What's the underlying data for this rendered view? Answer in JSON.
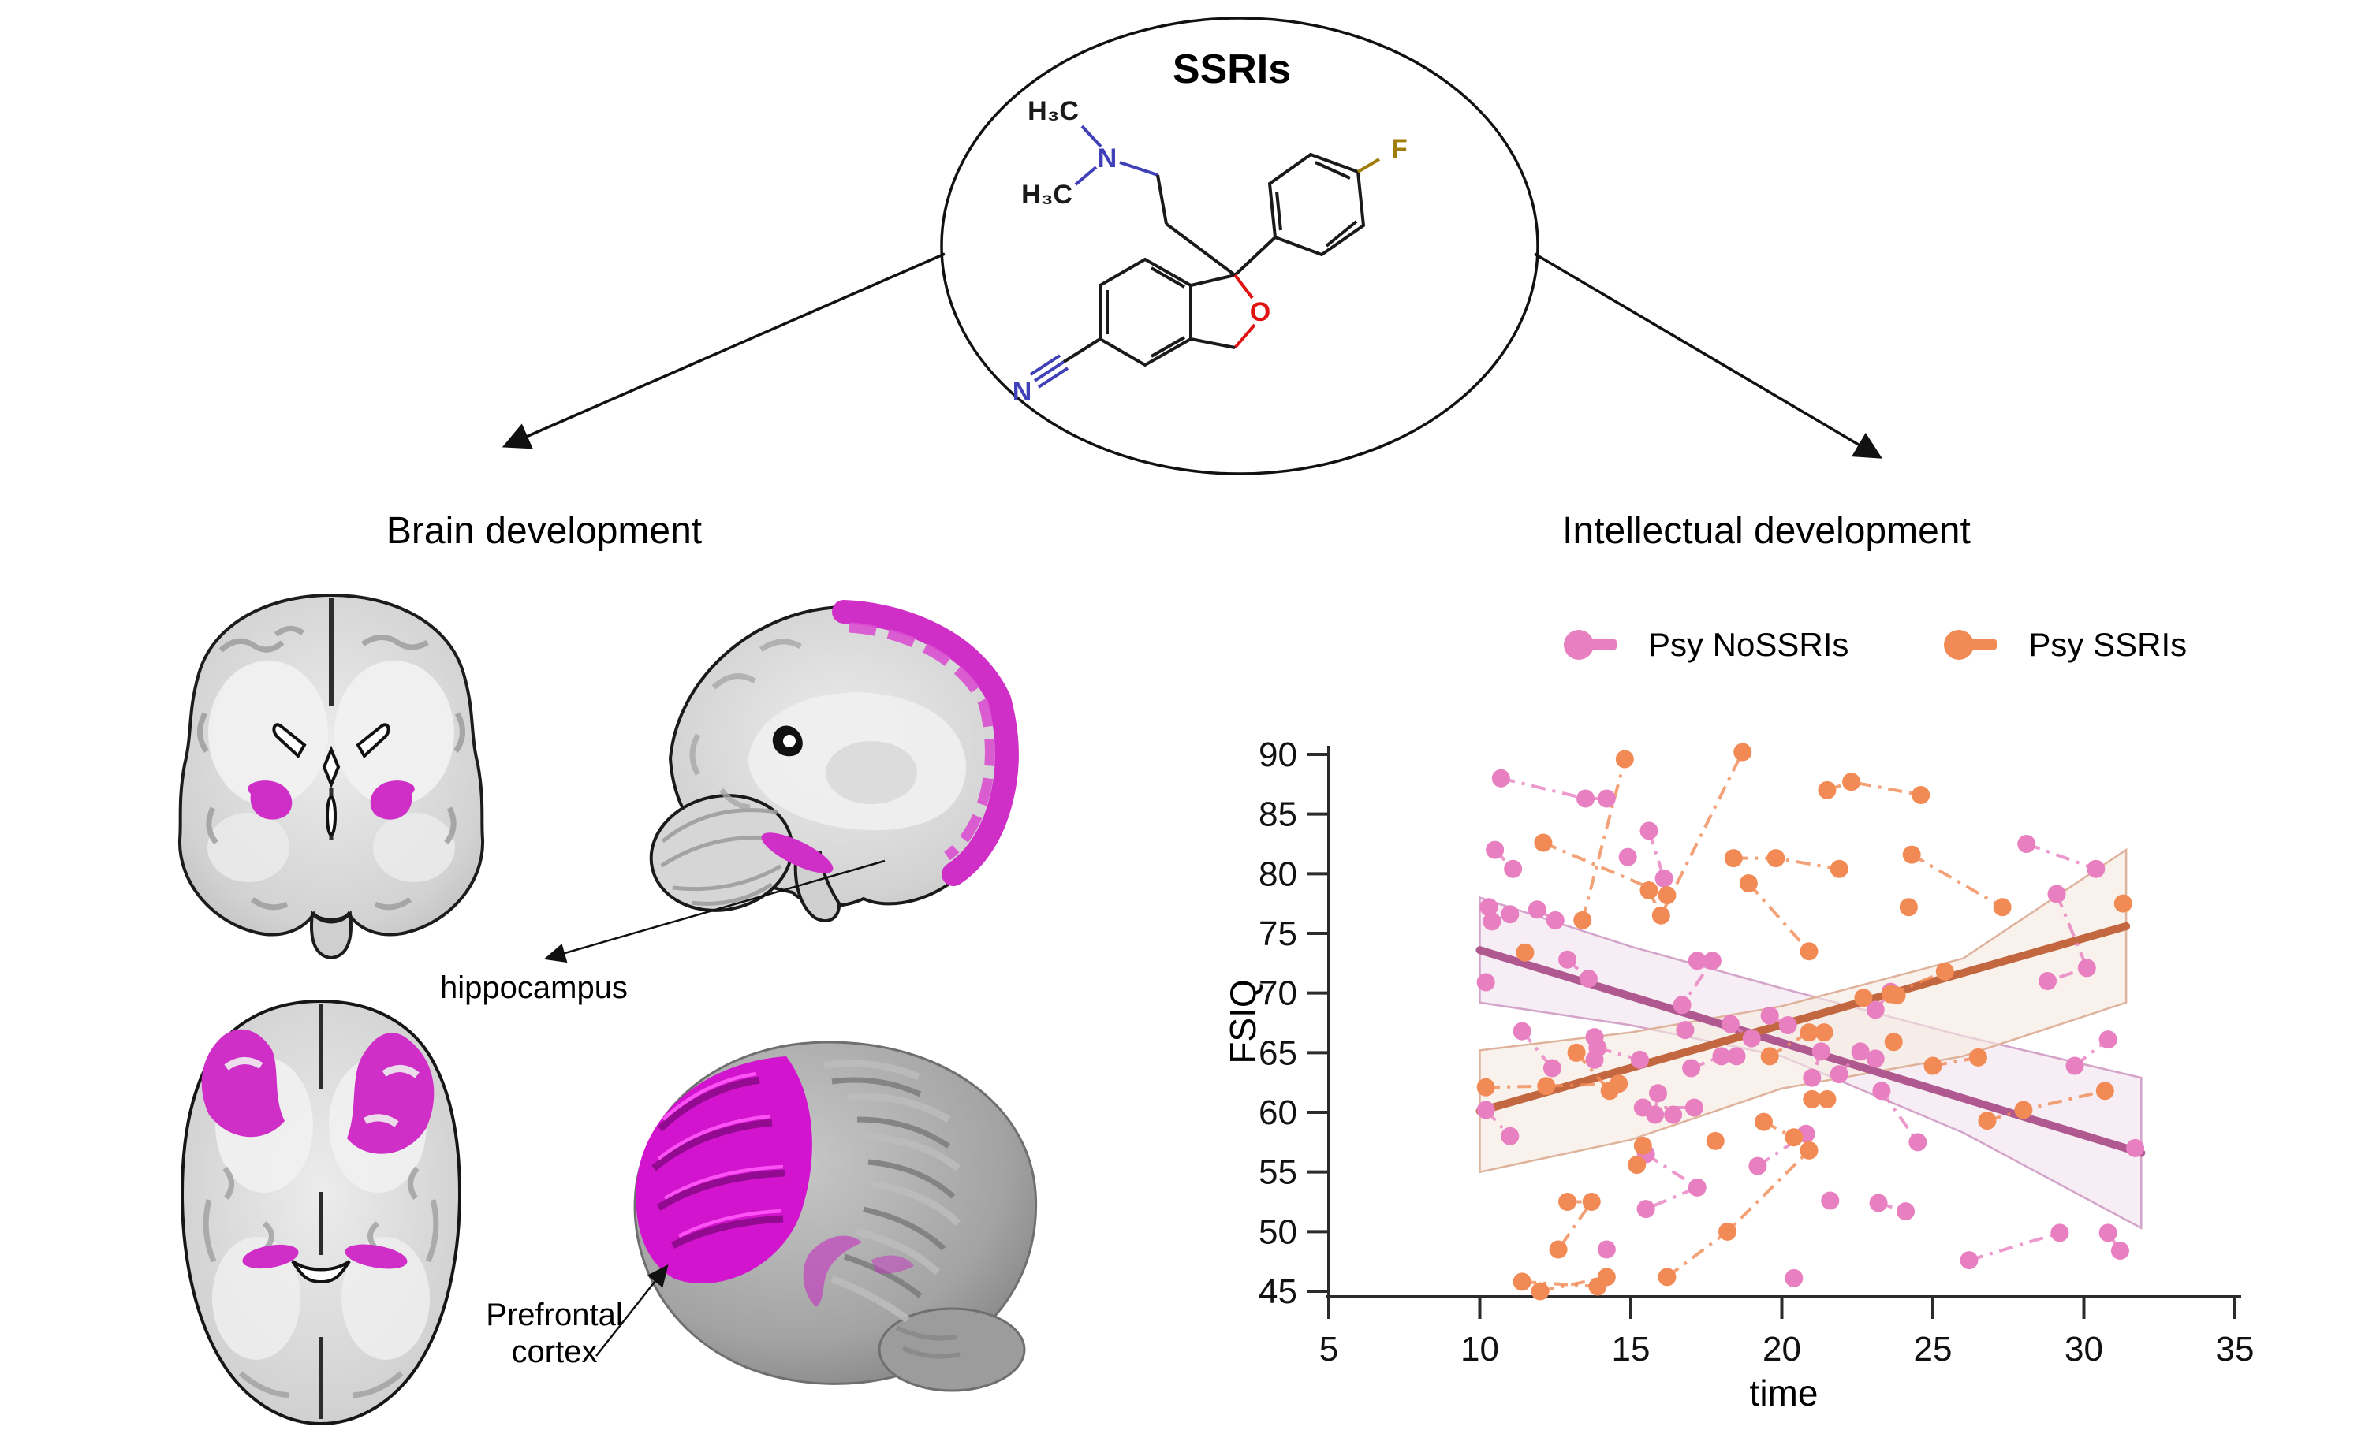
{
  "figure": {
    "molecule_title": "SSRIs",
    "left_title": "Brain development",
    "right_title": "Intellectual development",
    "hippocampus_label": "hippocampus",
    "prefrontal_label_line1": "Prefrontal",
    "prefrontal_label_line2": "cortex"
  },
  "molecule": {
    "ch3_top": "H₃C",
    "ch3_bottom": "H₃C",
    "n_amine": "N",
    "o_ring": "O",
    "n_nitrile": "N",
    "f_atom": "F"
  },
  "colors": {
    "magenta": "#cf2fc7",
    "magenta_bright": "#e316e3",
    "pink_point": "#e87fc0",
    "orange_point": "#f18a55",
    "pink_trend": "#b05990",
    "orange_trend": "#c2673f",
    "pink_band_fill": "#f0e3ee",
    "pink_band_edge": "#d3a3c9",
    "orange_band_fill": "#f6eae1",
    "orange_band_edge": "#dfb29c",
    "axis": "#2b2b2b",
    "bond": "#1a1a1a",
    "n_blue": "#4040b8",
    "o_red": "#e01212",
    "f_gold": "#a07d0a"
  },
  "chart_data": {
    "type": "scatter",
    "title": "",
    "xlabel": "time",
    "ylabel": "FSIQ",
    "xlim": [
      5,
      35
    ],
    "ylim": [
      45,
      90
    ],
    "xticks": [
      5,
      10,
      15,
      20,
      25,
      30,
      35
    ],
    "yticks": [
      45,
      50,
      55,
      60,
      65,
      70,
      75,
      80,
      85,
      90
    ],
    "grid": false,
    "legend_position": "top",
    "description": "Longitudinal spaghetti plot of FSIQ vs time: individual subject trajectories (dash-dot connected points) with opposing linear fits and confidence bands; Psy NoSSRIs declines, Psy SSRIs rises.",
    "series": [
      {
        "name": "Psy NoSSRIs",
        "point_color": "#e87fc0",
        "trend_color": "#b05990",
        "band_fill": "#f0e3ee",
        "band_edge": "#d3a3c9",
        "trend": {
          "x": [
            10,
            31.9
          ],
          "y": [
            73.6,
            56.6
          ]
        },
        "band_upper": [
          [
            10,
            78
          ],
          [
            15,
            73.9
          ],
          [
            20,
            70.4
          ],
          [
            26,
            66.4
          ],
          [
            31.9,
            62.9
          ]
        ],
        "band_lower": [
          [
            10,
            69.2
          ],
          [
            15,
            67.3
          ],
          [
            20,
            64.7
          ],
          [
            26,
            58.3
          ],
          [
            31.9,
            50.3
          ]
        ],
        "subjects": [
          [
            [
              10.7,
              88
            ],
            [
              13.5,
              86.3
            ],
            [
              14.2,
              86.3
            ]
          ],
          [
            [
              10.5,
              82
            ],
            [
              11.1,
              80.4
            ]
          ],
          [
            [
              15.6,
              83.6
            ],
            [
              16.1,
              79.6
            ]
          ],
          [
            [
              10.3,
              77.2
            ],
            [
              10.4,
              76
            ],
            [
              11,
              76.6
            ]
          ],
          [
            [
              11.9,
              77
            ],
            [
              12.5,
              76.1
            ]
          ],
          [
            [
              14.9,
              81.4
            ]
          ],
          [
            [
              17.2,
              72.7
            ],
            [
              17.7,
              72.7
            ],
            [
              16.7,
              69
            ]
          ],
          [
            [
              10.2,
              70.9
            ]
          ],
          [
            [
              13.8,
              66.3
            ],
            [
              13.8,
              64.4
            ]
          ],
          [
            [
              15.9,
              61.6
            ],
            [
              15.8,
              59.8
            ],
            [
              16.4,
              59.8
            ]
          ],
          [
            [
              19.6,
              68.1
            ],
            [
              20.2,
              67.3
            ]
          ],
          [
            [
              21.3,
              65.1
            ],
            [
              21,
              62.9
            ]
          ],
          [
            [
              23.1,
              68.6
            ],
            [
              23.6,
              70.1
            ]
          ],
          [
            [
              28.1,
              82.5
            ],
            [
              30.4,
              80.4
            ]
          ],
          [
            [
              29.1,
              78.3
            ],
            [
              30.1,
              72.1
            ],
            [
              28.8,
              71
            ]
          ],
          [
            [
              29.7,
              63.9
            ],
            [
              30.8,
              66.1
            ]
          ],
          [
            [
              11.4,
              66.8
            ],
            [
              12.4,
              63.7
            ]
          ],
          [
            [
              10.2,
              60.2
            ],
            [
              11,
              58
            ]
          ],
          [
            [
              13.9,
              65.4
            ],
            [
              15.3,
              64.4
            ]
          ],
          [
            [
              15.4,
              60.4
            ],
            [
              17.1,
              60.4
            ]
          ],
          [
            [
              15.5,
              56.5
            ],
            [
              17.2,
              53.7
            ],
            [
              15.5,
              51.9
            ]
          ],
          [
            [
              14.2,
              48.5
            ]
          ],
          [
            [
              17,
              63.7
            ],
            [
              18,
              64.7
            ],
            [
              18.5,
              64.7
            ]
          ],
          [
            [
              19.2,
              55.5
            ],
            [
              20.8,
              58.2
            ]
          ],
          [
            [
              21.9,
              63.2
            ],
            [
              22.6,
              65.1
            ],
            [
              23.1,
              64.5
            ]
          ],
          [
            [
              21.6,
              52.6
            ]
          ],
          [
            [
              23.3,
              61.8
            ],
            [
              24.5,
              57.5
            ]
          ],
          [
            [
              23.2,
              52.4
            ],
            [
              24.1,
              51.7
            ]
          ],
          [
            [
              26.2,
              47.6
            ],
            [
              29.2,
              49.9
            ]
          ],
          [
            [
              30.8,
              49.9
            ],
            [
              31.2,
              48.4
            ]
          ],
          [
            [
              31.7,
              57
            ]
          ],
          [
            [
              18.3,
              67.4
            ],
            [
              19,
              66.2
            ]
          ],
          [
            [
              12.9,
              72.8
            ],
            [
              13.6,
              71.2
            ]
          ],
          [
            [
              16.8,
              66.9
            ]
          ],
          [
            [
              20.4,
              46.1
            ]
          ]
        ]
      },
      {
        "name": "Psy SSRIs",
        "point_color": "#f18a55",
        "trend_color": "#c2673f",
        "band_fill": "#f6eae1",
        "band_edge": "#dfb29c",
        "trend": {
          "x": [
            10,
            31.4
          ],
          "y": [
            60.1,
            75.6
          ]
        },
        "band_upper": [
          [
            10,
            65.2
          ],
          [
            15,
            66.7
          ],
          [
            20,
            68.9
          ],
          [
            26,
            72.9
          ],
          [
            31.4,
            82
          ]
        ],
        "band_lower": [
          [
            10,
            55
          ],
          [
            15,
            57.7
          ],
          [
            20,
            62
          ],
          [
            26,
            64.7
          ],
          [
            31.4,
            69.2
          ]
        ],
        "subjects": [
          [
            [
              13.4,
              76.1
            ],
            [
              14.8,
              89.6
            ]
          ],
          [
            [
              12.1,
              82.6
            ],
            [
              16.2,
              78.2
            ]
          ],
          [
            [
              15.6,
              78.6
            ],
            [
              16,
              76.5
            ],
            [
              18.7,
              90.2
            ]
          ],
          [
            [
              21.5,
              87
            ],
            [
              22.3,
              87.7
            ],
            [
              24.6,
              86.6
            ]
          ],
          [
            [
              18.4,
              81.3
            ],
            [
              19.8,
              81.3
            ],
            [
              21.9,
              80.4
            ]
          ],
          [
            [
              18.9,
              79.2
            ],
            [
              20.9,
              73.5
            ]
          ],
          [
            [
              11.5,
              73.4
            ]
          ],
          [
            [
              24.3,
              81.6
            ],
            [
              27.3,
              77.2
            ]
          ],
          [
            [
              24.2,
              77.2
            ]
          ],
          [
            [
              23.8,
              69.8
            ]
          ],
          [
            [
              10.2,
              62.1
            ],
            [
              12.2,
              62.2
            ],
            [
              14.6,
              62.4
            ]
          ],
          [
            [
              13.2,
              65
            ],
            [
              14.3,
              61.8
            ]
          ],
          [
            [
              11.4,
              45.8
            ],
            [
              13.9,
              45.4
            ]
          ],
          [
            [
              12,
              45
            ],
            [
              14.2,
              46.2
            ]
          ],
          [
            [
              12.9,
              52.5
            ],
            [
              13.7,
              52.5
            ],
            [
              12.6,
              48.5
            ]
          ],
          [
            [
              15.4,
              57.2
            ],
            [
              15.2,
              55.6
            ]
          ],
          [
            [
              16.2,
              46.2
            ],
            [
              18.2,
              50
            ],
            [
              20.9,
              56.8
            ]
          ],
          [
            [
              19.4,
              59.2
            ],
            [
              20.4,
              57.9
            ]
          ],
          [
            [
              17.8,
              57.6
            ]
          ],
          [
            [
              19.6,
              64.7
            ],
            [
              20.9,
              66.7
            ],
            [
              21.4,
              66.7
            ]
          ],
          [
            [
              21,
              61.1
            ],
            [
              21.5,
              61.1
            ]
          ],
          [
            [
              26.8,
              59.3
            ],
            [
              28,
              60.2
            ],
            [
              30.7,
              61.8
            ]
          ],
          [
            [
              23.7,
              65.9
            ]
          ],
          [
            [
              25,
              63.9
            ],
            [
              26.5,
              64.6
            ]
          ],
          [
            [
              22.7,
              69.6
            ]
          ],
          [
            [
              23.6,
              69.9
            ],
            [
              25.4,
              71.8
            ]
          ],
          [
            [
              31.3,
              77.5
            ]
          ]
        ]
      }
    ]
  }
}
